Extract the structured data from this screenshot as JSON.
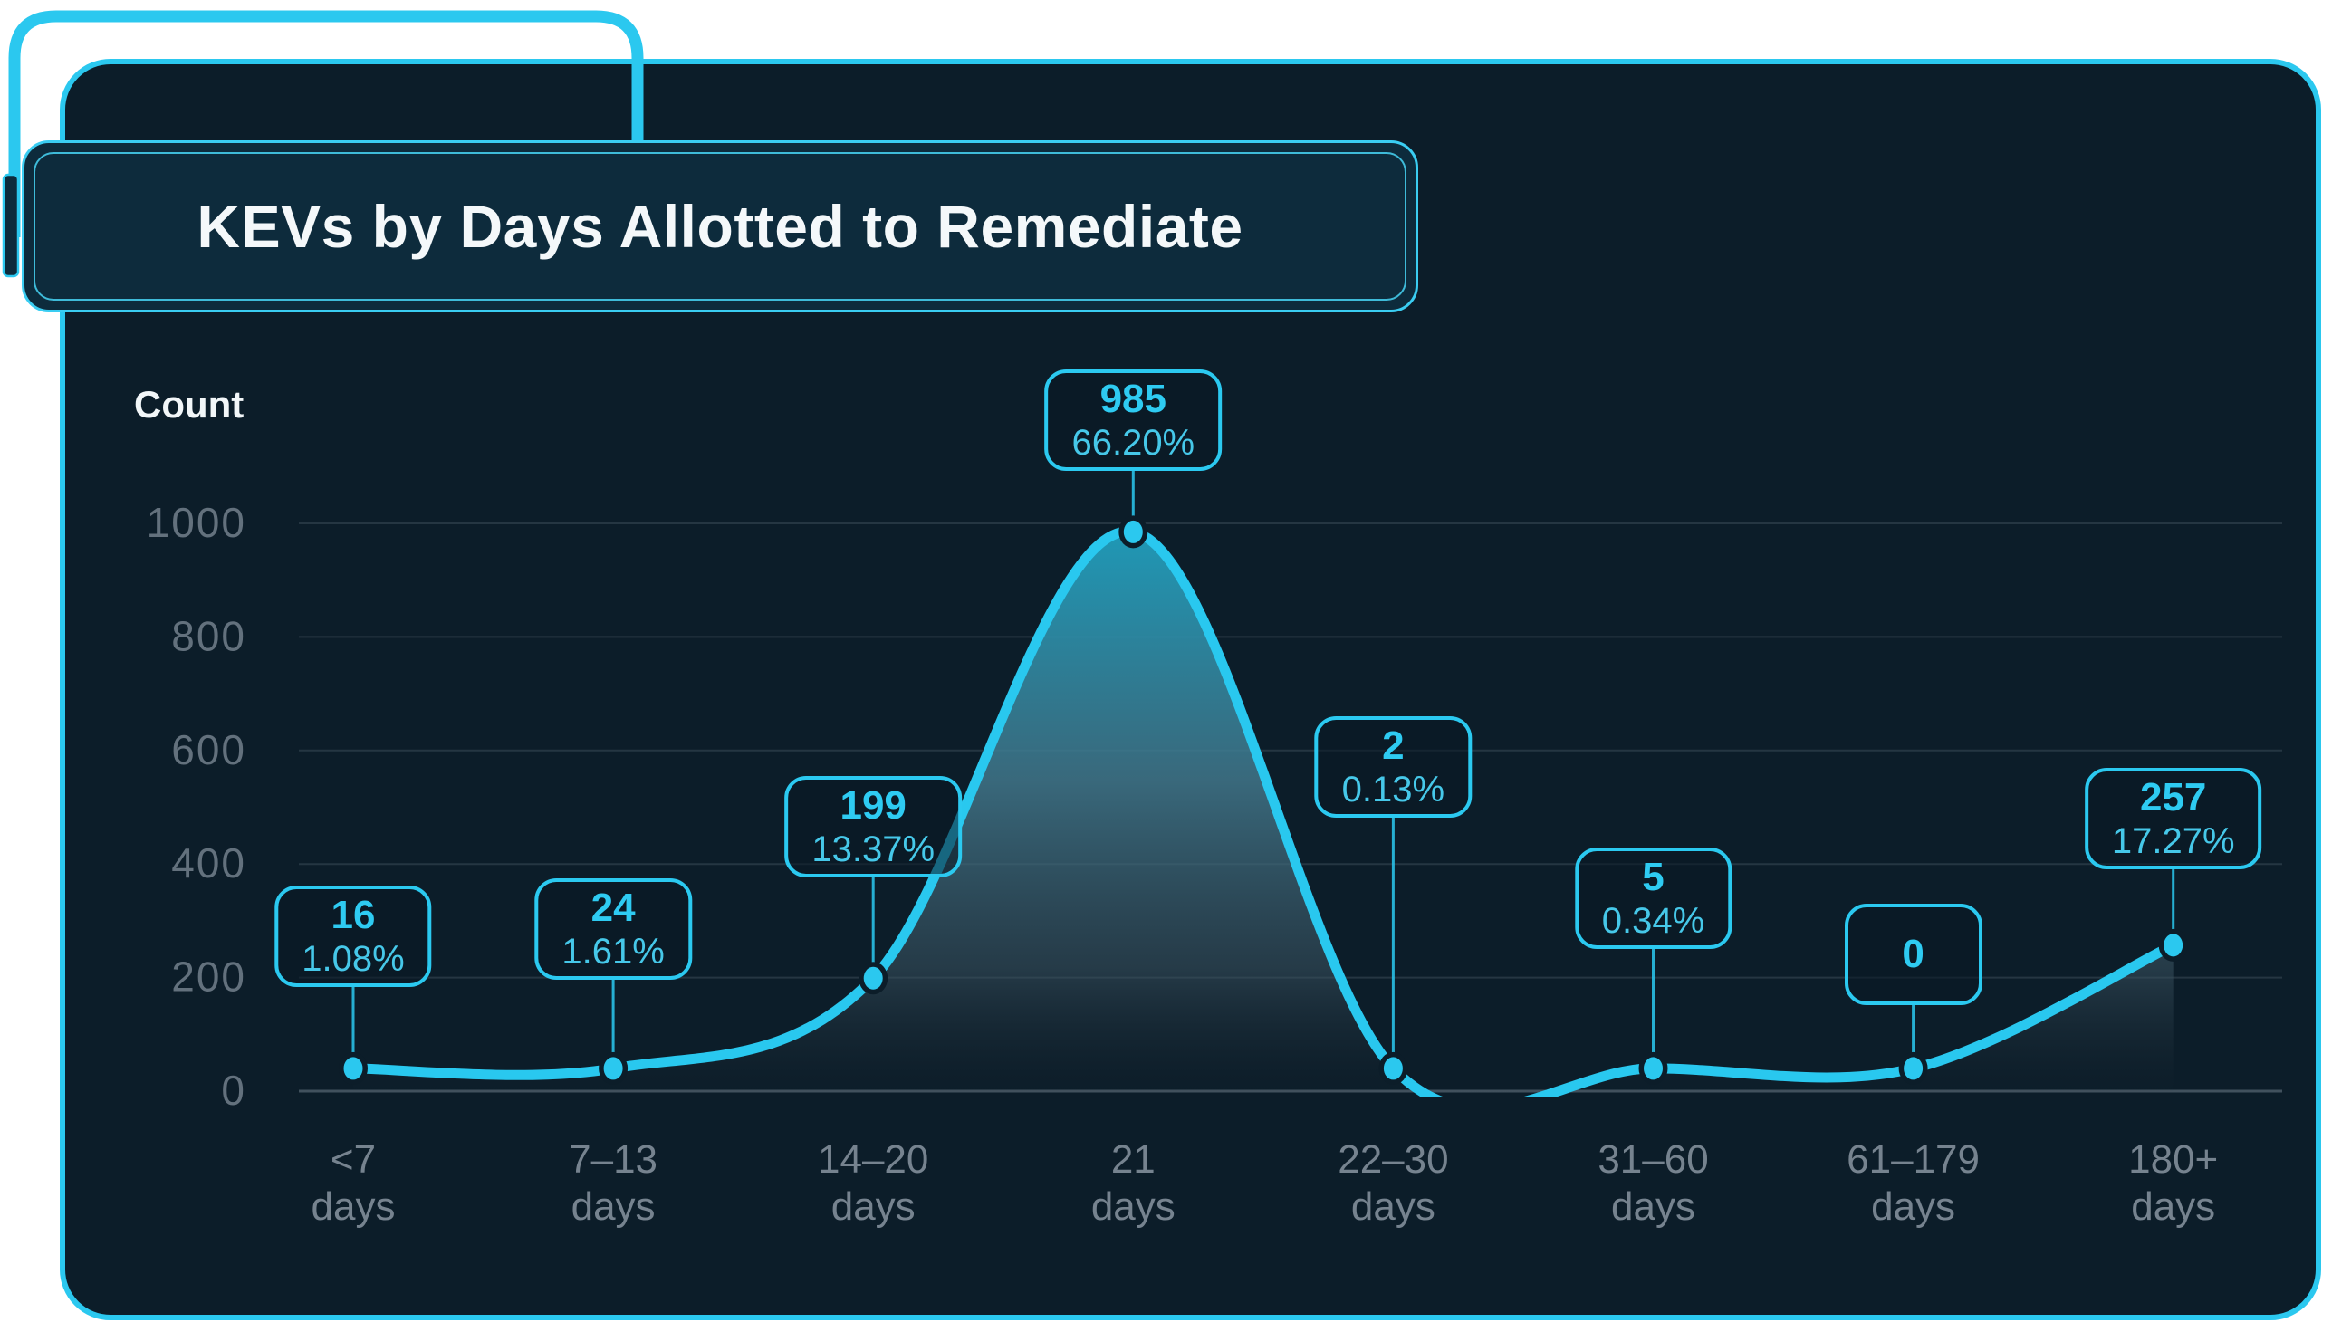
{
  "ui": {
    "title": "KEVs by Days Allotted to Remediate",
    "y_axis_label": "Count"
  },
  "colors": {
    "page_background": "#ffffff",
    "card_background": "#0c1d29",
    "accent_cyan": "#2bc8ef",
    "title_box_fill": "#0d2b3c",
    "title_text": "#f4f8fa",
    "y_tick_text": "#63717d",
    "x_tick_text": "#76838f",
    "gridline": "rgba(141,156,168,0.2)",
    "axis_line": "rgba(141,156,168,0.42)",
    "area_gradient_top": "#1fa0bf",
    "area_gradient_bottom": "rgba(32,45,56,0)"
  },
  "chart_data": {
    "type": "area",
    "title": "KEVs by Days Allotted to Remediate",
    "xlabel": "",
    "ylabel": "Count",
    "ylim": [
      0,
      1000
    ],
    "y_ticks": [
      1000,
      800,
      600,
      400,
      200,
      0
    ],
    "grid": true,
    "legend": "none",
    "categories": [
      "<7 days",
      "7–13 days",
      "14–20 days",
      "21 days",
      "22–30 days",
      "31–60 days",
      "61–179 days",
      "180+ days"
    ],
    "values": [
      16,
      24,
      199,
      985,
      2,
      5,
      0,
      257
    ],
    "point_labels": [
      "16",
      "24",
      "199",
      "985",
      "2",
      "5",
      "0",
      "257"
    ],
    "percent_labels": [
      "1.08%",
      "1.61%",
      "13.37%",
      "66.20%",
      "0.13%",
      "0.34%",
      null,
      "17.27%"
    ]
  }
}
